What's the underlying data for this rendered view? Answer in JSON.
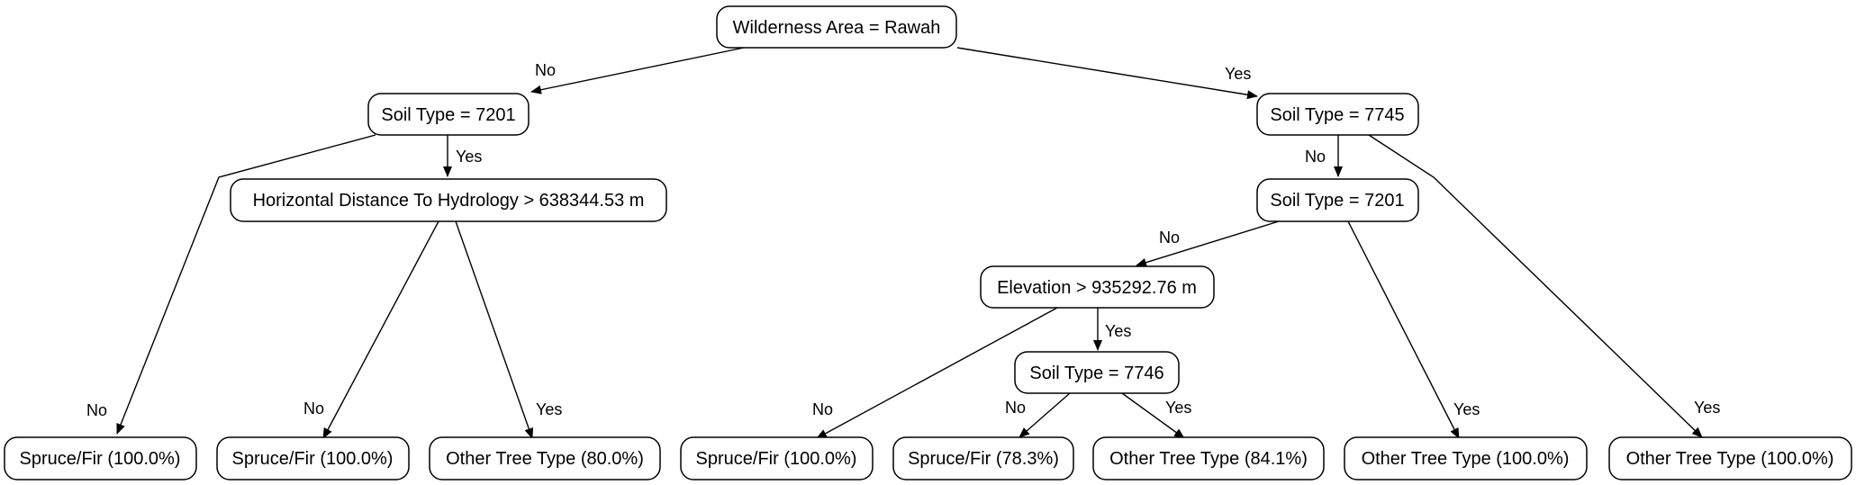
{
  "tree": {
    "nodes": {
      "root": "Wilderness Area = Rawah",
      "soil7201_left": "Soil Type = 7201",
      "soil7745": "Soil Type = 7745",
      "hydrology": "Horizontal Distance To Hydrology > 638344.53 m",
      "soil7201_right": "Soil Type = 7201",
      "elevation": "Elevation > 935292.76 m",
      "soil7746": "Soil Type = 7746",
      "leaf1": "Spruce/Fir (100.0%)",
      "leaf2": "Spruce/Fir (100.0%)",
      "leaf3": "Other Tree Type (80.0%)",
      "leaf4": "Spruce/Fir (100.0%)",
      "leaf5": "Spruce/Fir (78.3%)",
      "leaf6": "Other Tree Type (84.1%)",
      "leaf7": "Other Tree Type (100.0%)",
      "leaf8": "Other Tree Type (100.0%)"
    },
    "edges": {
      "root_no": "No",
      "root_yes": "Yes",
      "s7201l_no": "No",
      "s7201l_yes": "Yes",
      "hyd_no": "No",
      "hyd_yes": "Yes",
      "s7745_no": "No",
      "s7745_yes": "Yes",
      "s7201r_no": "No",
      "s7201r_yes": "Yes",
      "elev_no": "No",
      "elev_yes": "Yes",
      "s7746_no": "No",
      "s7746_yes": "Yes"
    }
  }
}
